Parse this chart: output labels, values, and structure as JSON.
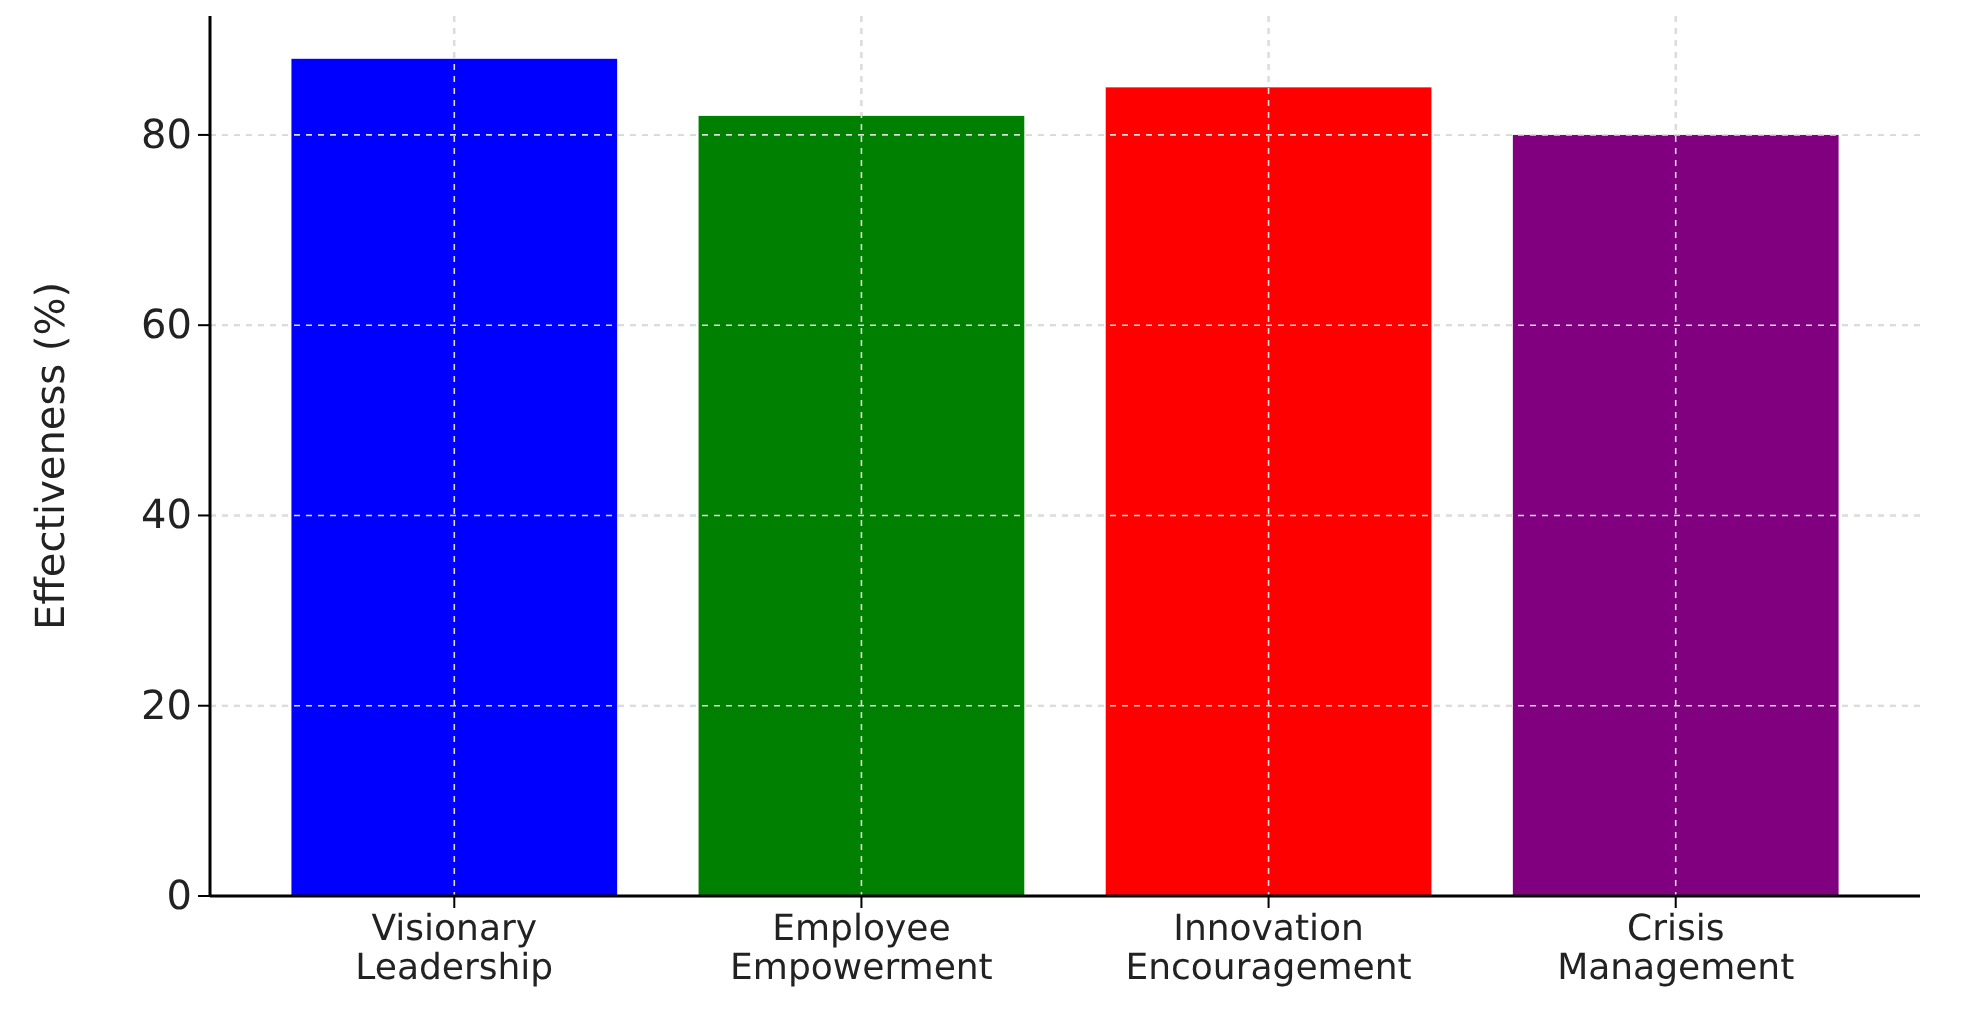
{
  "chart_data": {
    "type": "bar",
    "ylabel": "Effectiveness (%)",
    "categories": [
      "Visionary Leadership",
      "Employee Empowerment",
      "Innovation Encouragement",
      "Crisis Management"
    ],
    "values": [
      88,
      82,
      85,
      80
    ],
    "colors": [
      "#0000ff",
      "#008000",
      "#ff0000",
      "#800080"
    ],
    "ylim": [
      0,
      92.5
    ],
    "yticks": [
      0,
      20,
      40,
      60,
      80
    ],
    "grid": true
  }
}
